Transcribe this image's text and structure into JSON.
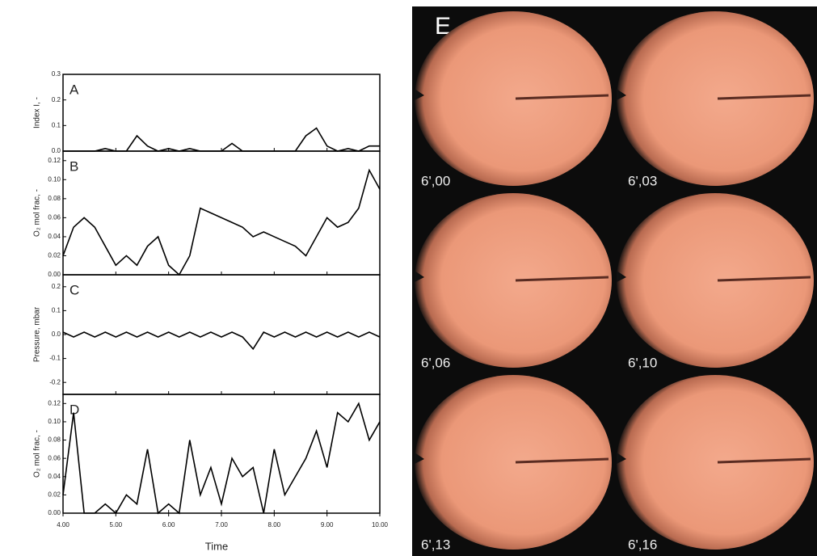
{
  "chart_data": [
    {
      "type": "line",
      "panel_label": "A",
      "ylabel": "Index I, -",
      "color": "#000000",
      "x": [
        4.0,
        4.2,
        4.4,
        4.6,
        4.8,
        5.0,
        5.2,
        5.4,
        5.6,
        5.8,
        6.0,
        6.2,
        6.4,
        6.6,
        6.8,
        7.0,
        7.2,
        7.4,
        7.6,
        7.8,
        8.0,
        8.2,
        8.4,
        8.6,
        8.8,
        9.0,
        9.2,
        9.4,
        9.6,
        9.8,
        10.0
      ],
      "values": [
        0,
        0,
        0,
        0,
        0.01,
        0,
        0,
        0.06,
        0.02,
        0,
        0.01,
        0,
        0.01,
        0,
        0,
        0,
        0.03,
        0,
        0,
        0,
        0,
        0,
        0,
        0.06,
        0.09,
        0.02,
        0,
        0.01,
        0,
        0.02,
        0.02
      ],
      "xlim": [
        4,
        10
      ],
      "ylim": [
        0,
        0.3
      ],
      "yticks": [
        {
          "value": 0,
          "label": "0.0"
        },
        {
          "value": 0.1,
          "label": "0.1"
        },
        {
          "value": 0.2,
          "label": "0.2"
        },
        {
          "value": 0.3,
          "label": "0.3"
        }
      ]
    },
    {
      "type": "line",
      "panel_label": "B",
      "ylabel": "O₂ mol frac, -",
      "color": "#000000",
      "x": [
        4.0,
        4.2,
        4.4,
        4.6,
        4.8,
        5.0,
        5.2,
        5.4,
        5.6,
        5.8,
        6.0,
        6.2,
        6.4,
        6.6,
        6.8,
        7.0,
        7.2,
        7.4,
        7.6,
        7.8,
        8.0,
        8.2,
        8.4,
        8.6,
        8.8,
        9.0,
        9.2,
        9.4,
        9.6,
        9.8,
        10.0
      ],
      "values": [
        0.02,
        0.05,
        0.06,
        0.05,
        0.03,
        0.01,
        0.02,
        0.01,
        0.03,
        0.04,
        0.01,
        0.0,
        0.02,
        0.07,
        0.065,
        0.06,
        0.055,
        0.05,
        0.04,
        0.045,
        0.04,
        0.035,
        0.03,
        0.02,
        0.04,
        0.06,
        0.05,
        0.055,
        0.07,
        0.11,
        0.09
      ],
      "xlim": [
        4,
        10
      ],
      "ylim": [
        0,
        0.13
      ],
      "yticks": [
        {
          "value": 0,
          "label": "0.00"
        },
        {
          "value": 0.02,
          "label": "0.02"
        },
        {
          "value": 0.04,
          "label": "0.04"
        },
        {
          "value": 0.06,
          "label": "0.06"
        },
        {
          "value": 0.08,
          "label": "0.08"
        },
        {
          "value": 0.1,
          "label": "0.10"
        },
        {
          "value": 0.12,
          "label": "0.12"
        }
      ]
    },
    {
      "type": "line",
      "panel_label": "C",
      "ylabel": "Pressure, mbar",
      "color": "#000000",
      "x": [
        4.0,
        4.2,
        4.4,
        4.6,
        4.8,
        5.0,
        5.2,
        5.4,
        5.6,
        5.8,
        6.0,
        6.2,
        6.4,
        6.6,
        6.8,
        7.0,
        7.2,
        7.4,
        7.6,
        7.8,
        8.0,
        8.2,
        8.4,
        8.6,
        8.8,
        9.0,
        9.2,
        9.4,
        9.6,
        9.8,
        10.0
      ],
      "values": [
        0.01,
        -0.01,
        0.01,
        -0.01,
        0.01,
        -0.01,
        0.01,
        -0.01,
        0.01,
        -0.01,
        0.01,
        -0.01,
        0.01,
        -0.01,
        0.01,
        -0.01,
        0.01,
        -0.01,
        -0.06,
        0.01,
        -0.01,
        0.01,
        -0.01,
        0.01,
        -0.01,
        0.01,
        -0.01,
        0.01,
        -0.01,
        0.01,
        -0.01
      ],
      "xlim": [
        4,
        10
      ],
      "ylim": [
        -0.25,
        0.25
      ],
      "yticks": [
        {
          "value": -0.2,
          "label": "-0.2"
        },
        {
          "value": -0.1,
          "label": "-0.1"
        },
        {
          "value": 0,
          "label": "0.0"
        },
        {
          "value": 0.1,
          "label": "0.1"
        },
        {
          "value": 0.2,
          "label": "0.2"
        }
      ]
    },
    {
      "type": "line",
      "panel_label": "D",
      "ylabel": "O₂ mol frac, -",
      "xlabel": "Time",
      "color": "#000000",
      "x": [
        4.0,
        4.2,
        4.4,
        4.6,
        4.8,
        5.0,
        5.2,
        5.4,
        5.6,
        5.8,
        6.0,
        6.2,
        6.4,
        6.6,
        6.8,
        7.0,
        7.2,
        7.4,
        7.6,
        7.8,
        8.0,
        8.2,
        8.4,
        8.6,
        8.8,
        9.0,
        9.2,
        9.4,
        9.6,
        9.8,
        10.0
      ],
      "values": [
        0.02,
        0.11,
        0,
        0,
        0.01,
        0,
        0.02,
        0.01,
        0.07,
        0,
        0.01,
        0,
        0.08,
        0.02,
        0.05,
        0.01,
        0.06,
        0.04,
        0.05,
        0,
        0.07,
        0.02,
        0.04,
        0.06,
        0.09,
        0.05,
        0.11,
        0.1,
        0.12,
        0.08,
        0.1
      ],
      "xlim": [
        4,
        10
      ],
      "ylim": [
        0,
        0.13
      ],
      "xticks": [
        {
          "value": 4,
          "label": "4.00"
        },
        {
          "value": 5,
          "label": "5.00"
        },
        {
          "value": 6,
          "label": "6.00"
        },
        {
          "value": 7,
          "label": "7.00"
        },
        {
          "value": 8,
          "label": "8.00"
        },
        {
          "value": 9,
          "label": "9.00"
        },
        {
          "value": 10,
          "label": "10.00"
        }
      ],
      "yticks": [
        {
          "value": 0,
          "label": "0.00"
        },
        {
          "value": 0.02,
          "label": "0.02"
        },
        {
          "value": 0.04,
          "label": "0.04"
        },
        {
          "value": 0.06,
          "label": "0.06"
        },
        {
          "value": 0.08,
          "label": "0.08"
        },
        {
          "value": 0.1,
          "label": "0.10"
        },
        {
          "value": 0.12,
          "label": "0.12"
        }
      ]
    }
  ],
  "image_panel": {
    "label": "E",
    "frames": [
      "6',00",
      "6',03",
      "6',06",
      "6',10",
      "6',13",
      "6',16"
    ]
  }
}
